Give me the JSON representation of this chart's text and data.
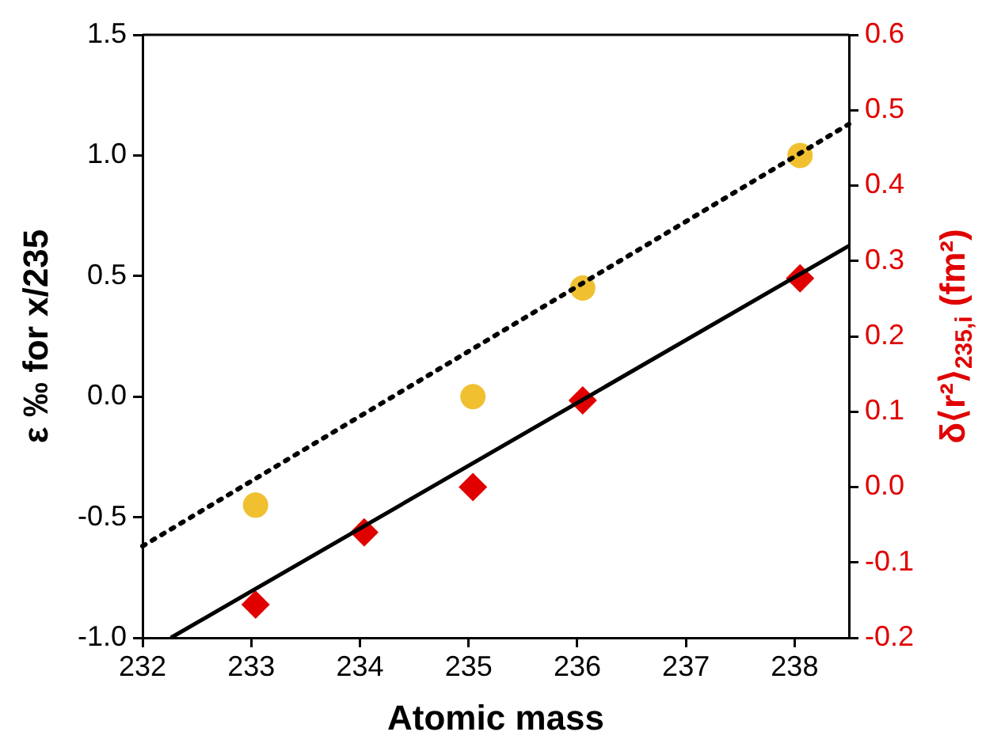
{
  "chart_data": {
    "type": "scatter",
    "xlabel": "Atomic mass",
    "ylabel": "ε ‰ for x/235",
    "y2label": "δ⟨r²⟩$_{235,i}$ (fm²)",
    "xlim": [
      232,
      238.5
    ],
    "xticks": [
      232,
      233,
      234,
      235,
      236,
      237,
      238
    ],
    "ylim": [
      -1.0,
      1.5
    ],
    "yticks": [
      {
        "value": -1.0,
        "label": "-1.0"
      },
      {
        "value": -0.5,
        "label": "-0.5"
      },
      {
        "value": 0,
        "label": "0.0"
      },
      {
        "value": 0.5,
        "label": "0.5"
      },
      {
        "value": 1.0,
        "label": "1.0"
      },
      {
        "value": 1.5,
        "label": "1.5"
      }
    ],
    "y2lim": [
      -0.2,
      0.6
    ],
    "y2ticks": [
      -0.2,
      -0.1,
      {
        "value": 0,
        "label": "0.0"
      },
      0.1,
      0.2,
      0.3,
      0.4,
      0.5,
      0.6
    ],
    "grid": false,
    "legend": false,
    "series": [
      {
        "type": "line",
        "color": "#000000",
        "marker": "none",
        "line_style": "dotted",
        "x": [
          232,
          238.5
        ],
        "values": [
          -0.62,
          1.13
        ]
      },
      {
        "type": "line",
        "color": "#000000",
        "marker": "none",
        "line_style": "solid",
        "axis": "y2",
        "x": [
          232.26,
          238.5
        ],
        "values": [
          -0.2,
          0.32
        ]
      },
      {
        "color": "#f0c030",
        "marker": "circle",
        "x": [
          233.04,
          235.04,
          236.05,
          238.05
        ],
        "values": [
          -0.45,
          0.0,
          0.45,
          1.0
        ]
      },
      {
        "color": "#e00000",
        "marker": "diamond",
        "axis": "y2",
        "x": [
          233.04,
          234.04,
          235.04,
          236.05,
          238.05
        ],
        "values": [
          -0.156,
          -0.06,
          0.0,
          0.115,
          0.277
        ]
      }
    ]
  }
}
